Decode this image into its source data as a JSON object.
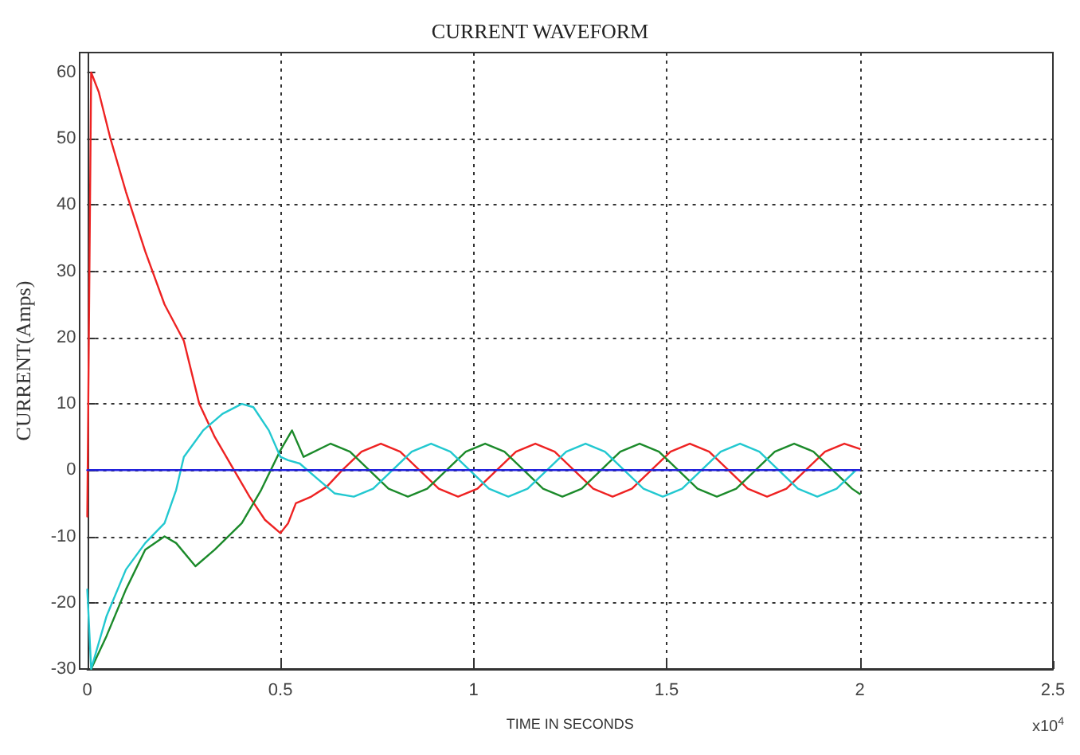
{
  "chart_data": {
    "type": "line",
    "title": "CURRENT WAVEFORM",
    "xlabel": "TIME IN SECONDS",
    "ylabel": "CURRENT(Amps)",
    "annotations": [
      "x10$^{4}$"
    ],
    "xlim": [
      0,
      2.5
    ],
    "xticks": [
      0,
      0.5,
      1,
      1.5,
      2,
      2.5
    ],
    "ylim": [
      -30,
      63
    ],
    "yticks": [
      -30,
      -20,
      -10,
      0,
      10,
      20,
      30,
      40,
      50,
      60
    ],
    "grid": true,
    "marker": "none",
    "line_style": "solid",
    "series": [
      {
        "color": "#ee2222",
        "x": [
          0,
          0.01,
          0.03,
          0.06,
          0.1,
          0.15,
          0.2,
          0.25,
          0.29,
          0.33,
          0.38,
          0.42,
          0.46,
          0.5,
          0.52,
          0.54,
          0.58,
          0.62,
          0.66,
          0.71,
          0.76,
          0.81,
          0.86,
          0.91,
          0.96,
          1.01,
          1.06,
          1.11,
          1.16,
          1.21,
          1.26,
          1.31,
          1.36,
          1.41,
          1.46,
          1.51,
          1.56,
          1.61,
          1.66,
          1.71,
          1.76,
          1.81,
          1.86,
          1.91,
          1.96,
          2.0
        ],
        "values": [
          -7,
          60,
          57,
          50,
          42,
          33,
          25,
          19.5,
          10,
          5,
          0,
          -4,
          -7.5,
          -9.5,
          -8,
          -5,
          -4,
          -2.5,
          0,
          2.8,
          4,
          2.8,
          0,
          -2.8,
          -4,
          -2.8,
          0,
          2.8,
          4,
          2.8,
          0,
          -2.8,
          -4,
          -2.8,
          0,
          2.8,
          4,
          2.8,
          0,
          -2.8,
          -4,
          -2.8,
          0,
          2.8,
          4,
          3.2
        ]
      },
      {
        "color": "#1b8a2a",
        "x": [
          0.01,
          0.05,
          0.1,
          0.15,
          0.2,
          0.23,
          0.28,
          0.33,
          0.4,
          0.45,
          0.5,
          0.53,
          0.56,
          0.63,
          0.68,
          0.73,
          0.78,
          0.83,
          0.88,
          0.93,
          0.98,
          1.03,
          1.08,
          1.13,
          1.18,
          1.23,
          1.28,
          1.33,
          1.38,
          1.43,
          1.48,
          1.53,
          1.58,
          1.63,
          1.68,
          1.73,
          1.78,
          1.83,
          1.88,
          1.93,
          1.98,
          2.0
        ],
        "values": [
          -30,
          -25,
          -18,
          -12,
          -10,
          -11,
          -14.5,
          -12,
          -8,
          -3,
          3,
          6,
          2,
          4,
          2.8,
          0,
          -2.8,
          -4,
          -2.8,
          0,
          2.8,
          4,
          2.8,
          0,
          -2.8,
          -4,
          -2.8,
          0,
          2.8,
          4,
          2.8,
          0,
          -2.8,
          -4,
          -2.8,
          0,
          2.8,
          4,
          2.8,
          0,
          -2.8,
          -3.6
        ]
      },
      {
        "color": "#22c8d0",
        "x": [
          0,
          0.01,
          0.05,
          0.1,
          0.15,
          0.2,
          0.23,
          0.25,
          0.3,
          0.35,
          0.4,
          0.43,
          0.47,
          0.5,
          0.52,
          0.55,
          0.6,
          0.64,
          0.69,
          0.74,
          0.79,
          0.84,
          0.89,
          0.94,
          0.99,
          1.04,
          1.09,
          1.14,
          1.19,
          1.24,
          1.29,
          1.34,
          1.39,
          1.44,
          1.49,
          1.54,
          1.59,
          1.64,
          1.69,
          1.74,
          1.79,
          1.84,
          1.89,
          1.94,
          1.99
        ],
        "values": [
          -18,
          -30,
          -22,
          -15,
          -11,
          -8,
          -3,
          2,
          6,
          8.5,
          10,
          9.5,
          6,
          2,
          1.5,
          1,
          -1.5,
          -3.5,
          -4,
          -2.8,
          0,
          2.8,
          4,
          2.8,
          0,
          -2.8,
          -4,
          -2.8,
          0,
          2.8,
          4,
          2.8,
          0,
          -2.8,
          -4,
          -2.8,
          0,
          2.8,
          4,
          2.8,
          0,
          -2.8,
          -4,
          -2.8,
          0
        ]
      },
      {
        "color": "#2222dd",
        "x": [
          0,
          2
        ],
        "values": [
          0,
          0
        ]
      }
    ]
  }
}
